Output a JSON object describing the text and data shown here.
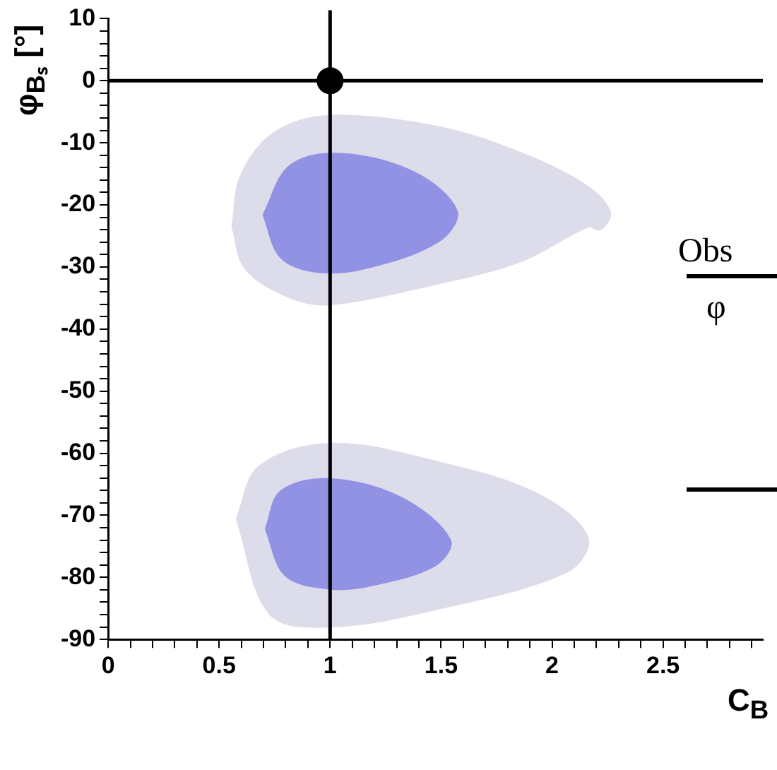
{
  "chart_data": {
    "type": "area",
    "xlabel": "C$_{B}$",
    "ylabel": "φ$_{Bₛ}$ [°]",
    "annotations": [
      "Obs",
      "φ"
    ],
    "xlim": [
      0,
      2.95
    ],
    "ylim": [
      -90,
      10
    ],
    "xticks": [
      0,
      {
        "value": 0.1,
        "label": null
      },
      {
        "value": 0.2,
        "label": null
      },
      {
        "value": 0.3,
        "label": null
      },
      {
        "value": 0.4,
        "label": null
      },
      0.5,
      {
        "value": 0.6,
        "label": null
      },
      {
        "value": 0.7,
        "label": null
      },
      {
        "value": 0.8,
        "label": null
      },
      {
        "value": 0.9,
        "label": null
      },
      1,
      {
        "value": 1.1,
        "label": null
      },
      {
        "value": 1.2,
        "label": null
      },
      {
        "value": 1.3,
        "label": null
      },
      {
        "value": 1.4,
        "label": null
      },
      1.5,
      {
        "value": 1.6,
        "label": null
      },
      {
        "value": 1.7,
        "label": null
      },
      {
        "value": 1.8,
        "label": null
      },
      {
        "value": 1.9,
        "label": null
      },
      2,
      {
        "value": 2.1,
        "label": null
      },
      {
        "value": 2.2,
        "label": null
      },
      {
        "value": 2.3,
        "label": null
      },
      {
        "value": 2.4,
        "label": null
      },
      2.5,
      {
        "value": 2.6,
        "label": null
      },
      {
        "value": 2.7,
        "label": null
      },
      {
        "value": 2.8,
        "label": null
      },
      {
        "value": 2.9,
        "label": null
      }
    ],
    "yticks": [
      -90,
      {
        "value": -88,
        "label": null
      },
      {
        "value": -86,
        "label": null
      },
      {
        "value": -84,
        "label": null
      },
      {
        "value": -82,
        "label": null
      },
      -80,
      {
        "value": -78,
        "label": null
      },
      {
        "value": -76,
        "label": null
      },
      {
        "value": -74,
        "label": null
      },
      {
        "value": -72,
        "label": null
      },
      -70,
      {
        "value": -68,
        "label": null
      },
      {
        "value": -66,
        "label": null
      },
      {
        "value": -64,
        "label": null
      },
      {
        "value": -62,
        "label": null
      },
      -60,
      {
        "value": -58,
        "label": null
      },
      {
        "value": -56,
        "label": null
      },
      {
        "value": -54,
        "label": null
      },
      {
        "value": -52,
        "label": null
      },
      -50,
      {
        "value": -48,
        "label": null
      },
      {
        "value": -46,
        "label": null
      },
      {
        "value": -44,
        "label": null
      },
      {
        "value": -42,
        "label": null
      },
      -40,
      {
        "value": -38,
        "label": null
      },
      {
        "value": -36,
        "label": null
      },
      {
        "value": -34,
        "label": null
      },
      {
        "value": -32,
        "label": null
      },
      -30,
      {
        "value": -28,
        "label": null
      },
      {
        "value": -26,
        "label": null
      },
      {
        "value": -24,
        "label": null
      },
      {
        "value": -22,
        "label": null
      },
      -20,
      {
        "value": -18,
        "label": null
      },
      {
        "value": -16,
        "label": null
      },
      {
        "value": -14,
        "label": null
      },
      {
        "value": -12,
        "label": null
      },
      -10,
      {
        "value": -8,
        "label": null
      },
      {
        "value": -6,
        "label": null
      },
      {
        "value": -4,
        "label": null
      },
      {
        "value": -2,
        "label": null
      },
      0,
      {
        "value": 2,
        "label": null
      },
      {
        "value": 4,
        "label": null
      },
      {
        "value": 6,
        "label": null
      },
      {
        "value": 8,
        "label": null
      },
      10
    ],
    "grid": false,
    "legend": false,
    "series": [
      {
        "color": "#dcdcea",
        "x": [
          0.56,
          0.6,
          0.75,
          1.0,
          1.49,
          1.89,
          2.16,
          2.26,
          2.22,
          2.16,
          1.87,
          1.49,
          1.0,
          0.82,
          0.62,
          0.56
        ],
        "values": [
          -23.5,
          -15.2,
          -8.4,
          -5.7,
          -7.5,
          -12.1,
          -17.1,
          -21.2,
          -23.9,
          -23.5,
          -28.9,
          -32.6,
          -36,
          -34.9,
          -30.3,
          -23.5
        ]
      },
      {
        "color": "#9292e4",
        "x": [
          0.7,
          0.82,
          1.05,
          1.38,
          1.57,
          1.49,
          1.18,
          0.95,
          0.78,
          0.7
        ],
        "values": [
          -21.6,
          -13.7,
          -11.8,
          -14.8,
          -21,
          -25.8,
          -30,
          -30.8,
          -28.5,
          -21.6
        ]
      },
      {
        "color": "#dcdcea",
        "x": [
          0.58,
          0.68,
          1.0,
          1.49,
          1.94,
          2.16,
          2.07,
          1.49,
          1.0,
          0.73,
          0.58
        ],
        "values": [
          -70.6,
          -62.2,
          -58.5,
          -61.5,
          -66.7,
          -73.6,
          -79,
          -85,
          -87.9,
          -85.9,
          -70.6
        ]
      },
      {
        "color": "#9292e4",
        "x": [
          0.71,
          0.78,
          1.0,
          1.32,
          1.54,
          1.47,
          1.18,
          1.0,
          0.8,
          0.71
        ],
        "values": [
          -72.2,
          -66.1,
          -64.2,
          -67.2,
          -74,
          -78.1,
          -81.3,
          -81.8,
          -79.7,
          -72.2
        ]
      },
      {
        "type": "scatter",
        "marker": "circle",
        "color": "#000000",
        "x": [
          1
        ],
        "values": [
          0
        ]
      }
    ],
    "ref_lines": [
      {
        "axis": "x",
        "value": 1,
        "color": "#000000"
      },
      {
        "axis": "y",
        "value": 0,
        "color": "#000000"
      }
    ]
  }
}
